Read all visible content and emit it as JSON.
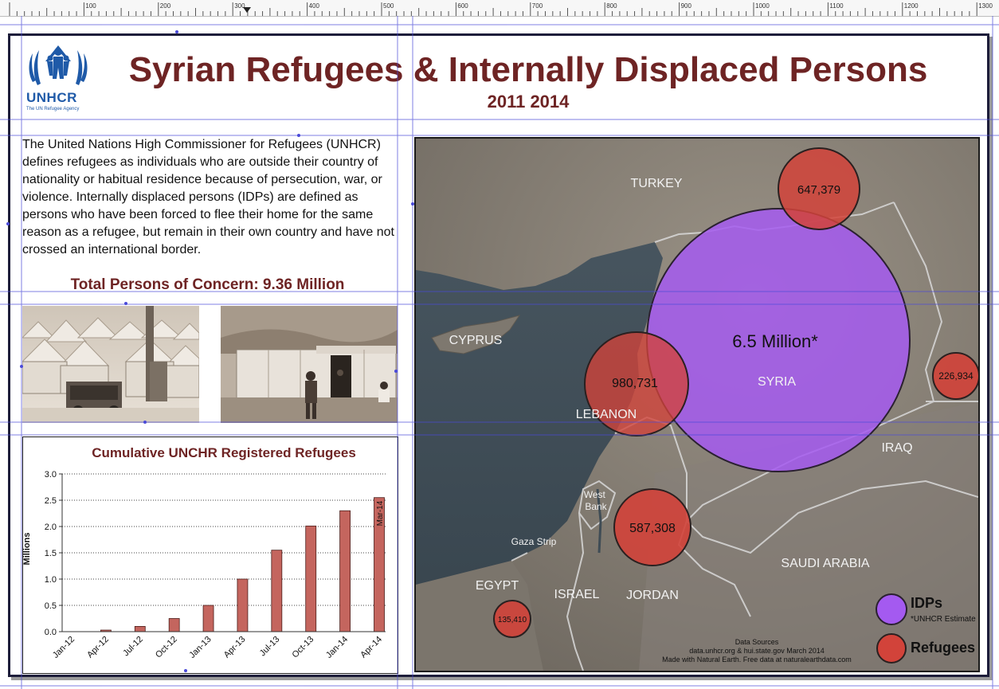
{
  "ruler": {
    "labels": [
      "100",
      "200",
      "300",
      "400",
      "500",
      "600",
      "700",
      "800",
      "900",
      "1000",
      "1100",
      "1200",
      "1300"
    ]
  },
  "header": {
    "org_name": "UNHCR",
    "org_subtitle": "The UN Refugee Agency",
    "title": "Syrian Refugees & Internally Displaced Persons",
    "years": "2011  2014"
  },
  "intro": {
    "definition": "The United Nations High Commissioner for Refugees (UNHCR) defines refugees as individuals who are outside their country of nationality or habitual residence because of persecution, war, or violence. Internally displaced persons (IDPs) are defined as persons who have been forced to flee their home for the same reason as a refugee, but remain in their own country and have not crossed an international border.",
    "total": "Total Persons of Concern: 9.36 Million"
  },
  "chart_data": {
    "type": "bar",
    "title": "Cumulative UNCHR Registered Refugees",
    "xlabel": "",
    "ylabel": "Millions",
    "ylim": [
      0,
      3.0
    ],
    "yticks": [
      "0.0",
      "0.5",
      "1.0",
      "1.5",
      "2.0",
      "2.5",
      "3.0"
    ],
    "categories": [
      "Jan-12",
      "Apr-12",
      "Jul-12",
      "Oct-12",
      "Jan-13",
      "Apr-13",
      "Jul-13",
      "Oct-13",
      "Jan-14",
      "Apr-14"
    ],
    "values": [
      0.0,
      0.03,
      0.1,
      0.25,
      0.5,
      1.0,
      1.55,
      2.01,
      2.3,
      2.55
    ],
    "annotation": "Mar-14",
    "bar_color": "#c4655e",
    "grid": "horizontal dotted"
  },
  "map": {
    "countries": {
      "turkey": "TURKEY",
      "cyprus": "CYPRUS",
      "syria": "SYRIA",
      "lebanon": "LEBANON",
      "iraq": "IRAQ",
      "west_bank": "West Bank",
      "gaza": "Gaza Strip",
      "israel": "ISRAEL",
      "egypt": "EGYPT",
      "jordan": "JORDAN",
      "saudi": "SAUDI ARABIA"
    },
    "bubbles": {
      "idp_syria": "6.5 Million*",
      "turkey": "647,379",
      "lebanon": "980,731",
      "iraq": "226,934",
      "jordan": "587,308",
      "egypt": "135,410"
    },
    "legend": {
      "idp_label": "IDPs",
      "idp_note": "*UNHCR Estimate",
      "refugee_label": "Refugees",
      "idp_color": "#a45af0",
      "refugee_color": "#d2433a"
    },
    "sources": {
      "title": "Data Sources",
      "line1": "data.unhcr.org & hui.state.gov March 2014",
      "line2": "Made with Natural Earth.  Free data at naturalearthdata.com"
    }
  }
}
